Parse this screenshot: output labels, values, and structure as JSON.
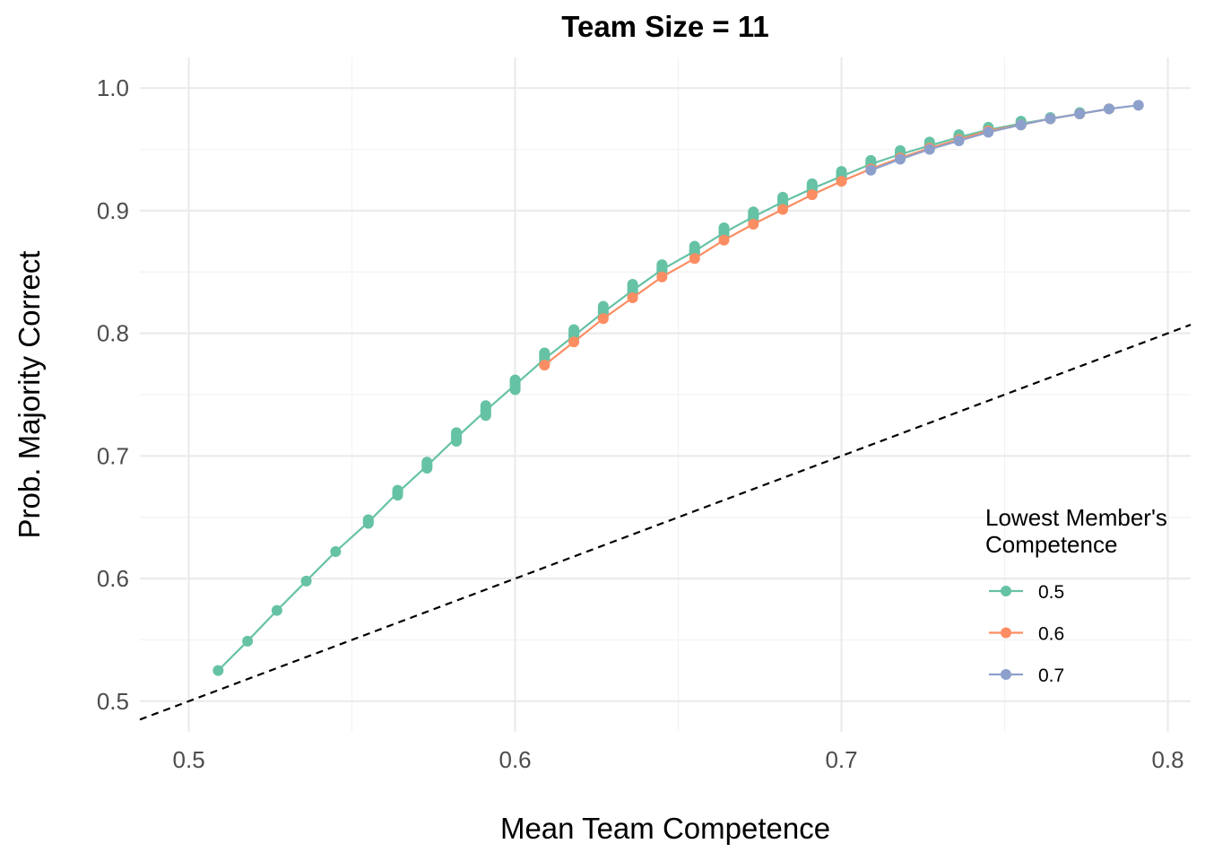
{
  "chart_data": {
    "type": "line",
    "title": "Team Size = 11",
    "xlabel": "Mean Team Competence",
    "ylabel": "Prob. Majority Correct",
    "xlim": [
      0.485,
      0.807
    ],
    "ylim": [
      0.475,
      1.025
    ],
    "x_ticks": [
      0.5,
      0.6,
      0.7,
      0.8
    ],
    "x_tick_labels": [
      "0.5",
      "0.6",
      "0.7",
      "0.8"
    ],
    "y_ticks": [
      0.5,
      0.6,
      0.7,
      0.8,
      0.9,
      1.0
    ],
    "y_tick_labels": [
      "0.5",
      "0.6",
      "0.7",
      "0.8",
      "0.9",
      "1.0"
    ],
    "grid": true,
    "legend": {
      "title": "Lowest Member's Competence",
      "title_lines": [
        "Lowest Member's",
        "Competence"
      ],
      "position": "right"
    },
    "reference_line": {
      "style": "dashed",
      "color": "#000000",
      "slope": 1,
      "intercept": 0
    },
    "series": [
      {
        "name": "0.5",
        "color": "#66C2A5",
        "x": [
          0.509,
          0.518,
          0.527,
          0.536,
          0.545,
          0.555,
          0.564,
          0.573,
          0.582,
          0.591,
          0.6,
          0.609,
          0.618,
          0.627,
          0.636,
          0.645,
          0.655,
          0.664,
          0.673,
          0.682,
          0.691,
          0.7,
          0.709,
          0.718,
          0.727,
          0.736,
          0.745,
          0.755,
          0.764,
          0.773,
          0.782
        ],
        "y": [
          0.525,
          0.549,
          0.574,
          0.598,
          0.622,
          0.646,
          0.67,
          0.692,
          0.715,
          0.737,
          0.758,
          0.779,
          0.798,
          0.817,
          0.835,
          0.852,
          0.867,
          0.882,
          0.895,
          0.907,
          0.918,
          0.928,
          0.938,
          0.946,
          0.953,
          0.96,
          0.966,
          0.971,
          0.975,
          0.979,
          0.983
        ],
        "point_ranges": {
          "x": [
            0.555,
            0.564,
            0.573,
            0.582,
            0.591,
            0.6,
            0.609,
            0.618,
            0.627,
            0.636,
            0.645,
            0.655,
            0.664,
            0.673,
            0.682,
            0.691,
            0.7,
            0.709,
            0.718,
            0.727,
            0.736,
            0.745,
            0.755,
            0.764,
            0.773
          ],
          "y_min": [
            0.645,
            0.668,
            0.69,
            0.712,
            0.733,
            0.754,
            0.775,
            0.795,
            0.814,
            0.832,
            0.849,
            0.865,
            0.879,
            0.892,
            0.904,
            0.915,
            0.926,
            0.936,
            0.944,
            0.952,
            0.959,
            0.965,
            0.97,
            0.975,
            0.979
          ],
          "y_max": [
            0.648,
            0.672,
            0.695,
            0.719,
            0.741,
            0.762,
            0.784,
            0.803,
            0.822,
            0.84,
            0.856,
            0.871,
            0.886,
            0.899,
            0.911,
            0.922,
            0.932,
            0.941,
            0.949,
            0.956,
            0.962,
            0.968,
            0.973,
            0.976,
            0.98
          ]
        }
      },
      {
        "name": "0.6",
        "color": "#FC8D62",
        "x": [
          0.609,
          0.618,
          0.627,
          0.636,
          0.645,
          0.655,
          0.664,
          0.673,
          0.682,
          0.691,
          0.7,
          0.709,
          0.718,
          0.727,
          0.736,
          0.745,
          0.755,
          0.764,
          0.773,
          0.782
        ],
        "y": [
          0.774,
          0.793,
          0.812,
          0.829,
          0.846,
          0.861,
          0.876,
          0.889,
          0.901,
          0.913,
          0.924,
          0.934,
          0.943,
          0.951,
          0.958,
          0.965,
          0.97,
          0.975,
          0.979,
          0.983
        ]
      },
      {
        "name": "0.7",
        "color": "#8DA0CB",
        "x": [
          0.709,
          0.718,
          0.727,
          0.736,
          0.745,
          0.755,
          0.764,
          0.773,
          0.782,
          0.791
        ],
        "y": [
          0.933,
          0.942,
          0.95,
          0.957,
          0.964,
          0.97,
          0.975,
          0.979,
          0.983,
          0.986
        ]
      }
    ]
  }
}
